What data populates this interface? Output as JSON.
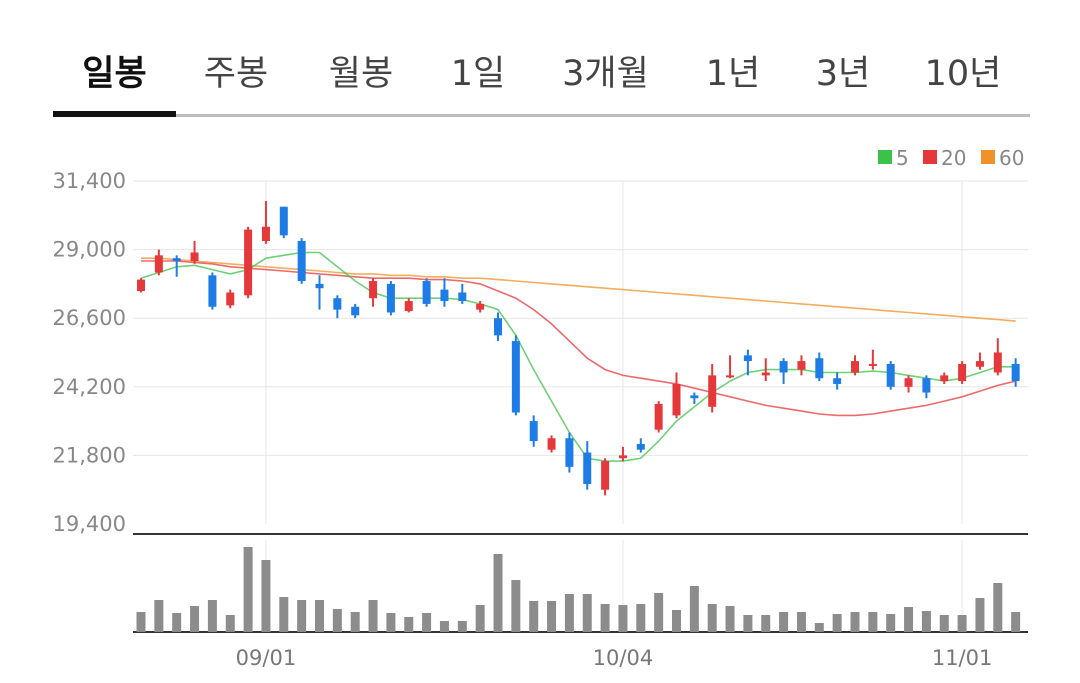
{
  "tabs": [
    {
      "label": "일봉",
      "active": true
    },
    {
      "label": "주봉",
      "active": false
    },
    {
      "label": "월봉",
      "active": false
    },
    {
      "label": "1일",
      "active": false
    },
    {
      "label": "3개월",
      "active": false
    },
    {
      "label": "1년",
      "active": false
    },
    {
      "label": "3년",
      "active": false
    },
    {
      "label": "10년",
      "active": false
    }
  ],
  "colors": {
    "up": "#e5383b",
    "down": "#1e7ce6",
    "ma5": "#3cc24a",
    "ma20": "#e5383b",
    "ma60": "#f0922a",
    "volume": "#8c8c8c",
    "grid": "#e6e6e6"
  },
  "chart_data": {
    "type": "candlestick",
    "y_ticks": [
      "31,400",
      "29,000",
      "26,600",
      "24,200",
      "21,800",
      "19,400"
    ],
    "ylim": [
      19400,
      31400
    ],
    "x_labels": [
      {
        "label": "09/01",
        "index": 7
      },
      {
        "label": "10/04",
        "index": 27
      },
      {
        "label": "11/01",
        "index": 46
      }
    ],
    "legend": [
      {
        "name": "5",
        "color": "#3cc24a"
      },
      {
        "name": "20",
        "color": "#e5383b"
      },
      {
        "name": "60",
        "color": "#f0922a"
      }
    ],
    "candles": [
      [
        27550,
        27950,
        27500,
        28000
      ],
      [
        28200,
        28800,
        28100,
        29000
      ],
      [
        28700,
        28600,
        28050,
        28800
      ],
      [
        28600,
        28900,
        28500,
        29300
      ],
      [
        28100,
        27000,
        26900,
        28200
      ],
      [
        27050,
        27500,
        26950,
        27600
      ],
      [
        27400,
        29700,
        27300,
        29800
      ],
      [
        29300,
        29800,
        29200,
        30700
      ],
      [
        30500,
        29500,
        29400,
        30500
      ],
      [
        29300,
        27900,
        27800,
        29400
      ],
      [
        27800,
        27650,
        26900,
        28100
      ],
      [
        27300,
        26900,
        26600,
        27400
      ],
      [
        27000,
        26700,
        26600,
        27100
      ],
      [
        27300,
        27900,
        27000,
        28000
      ],
      [
        27800,
        26800,
        26700,
        27900
      ],
      [
        26850,
        27200,
        26800,
        27300
      ],
      [
        27900,
        27100,
        27000,
        28000
      ],
      [
        27600,
        27200,
        27000,
        28000
      ],
      [
        27500,
        27200,
        27100,
        27800
      ],
      [
        26900,
        27100,
        26800,
        27200
      ],
      [
        26600,
        26000,
        25800,
        26800
      ],
      [
        25800,
        23300,
        23200,
        26000
      ],
      [
        23000,
        22300,
        22100,
        23200
      ],
      [
        22000,
        22400,
        21900,
        22500
      ],
      [
        22400,
        21400,
        21200,
        22600
      ],
      [
        21900,
        20800,
        20600,
        22300
      ],
      [
        20600,
        21600,
        20400,
        21700
      ],
      [
        21700,
        21800,
        21600,
        22100
      ],
      [
        22200,
        22000,
        21900,
        22400
      ],
      [
        22700,
        23600,
        22600,
        23700
      ],
      [
        23200,
        24300,
        23100,
        24700
      ],
      [
        23900,
        23800,
        23600,
        24000
      ],
      [
        23500,
        24600,
        23300,
        25000
      ],
      [
        24600,
        24600,
        24500,
        25300
      ],
      [
        25300,
        25100,
        24600,
        25500
      ],
      [
        24600,
        24700,
        24400,
        25200
      ],
      [
        25100,
        24700,
        24300,
        25200
      ],
      [
        24800,
        25100,
        24600,
        25300
      ],
      [
        25200,
        24500,
        24400,
        25400
      ],
      [
        24500,
        24300,
        24100,
        24700
      ],
      [
        24700,
        25100,
        24600,
        25300
      ],
      [
        25000,
        25000,
        24800,
        25500
      ],
      [
        25000,
        24200,
        24100,
        25100
      ],
      [
        24200,
        24500,
        24000,
        24600
      ],
      [
        24500,
        24000,
        23800,
        24600
      ],
      [
        24400,
        24600,
        24300,
        24700
      ],
      [
        24400,
        25000,
        24300,
        25100
      ],
      [
        24900,
        25100,
        24800,
        25400
      ],
      [
        24700,
        25400,
        24600,
        25900
      ],
      [
        25000,
        24400,
        24200,
        25200
      ]
    ],
    "ma5": [
      28000,
      28200,
      28400,
      28450,
      28300,
      28150,
      28300,
      28700,
      28800,
      28900,
      28900,
      28400,
      27900,
      27500,
      27300,
      27300,
      27300,
      27300,
      27250,
      27100,
      26900,
      26000,
      24800,
      23700,
      22600,
      21700,
      21600,
      21600,
      21700,
      22300,
      23000,
      23500,
      24000,
      24400,
      24700,
      24800,
      24800,
      24800,
      24700,
      24700,
      24700,
      24750,
      24700,
      24600,
      24500,
      24400,
      24500,
      24700,
      24900,
      24900
    ],
    "ma20": [
      28600,
      28600,
      28600,
      28550,
      28500,
      28400,
      28350,
      28300,
      28250,
      28200,
      28150,
      28100,
      28050,
      28000,
      28000,
      28000,
      27950,
      27950,
      27900,
      27800,
      27550,
      27300,
      26900,
      26400,
      25800,
      25200,
      24800,
      24600,
      24500,
      24400,
      24300,
      24150,
      24000,
      23850,
      23700,
      23550,
      23450,
      23350,
      23250,
      23200,
      23200,
      23250,
      23350,
      23450,
      23550,
      23700,
      23850,
      24050,
      24250,
      24400
    ],
    "ma60": [
      28700,
      28700,
      28650,
      28600,
      28550,
      28500,
      28450,
      28400,
      28350,
      28300,
      28250,
      28200,
      28150,
      28150,
      28100,
      28100,
      28050,
      28050,
      28000,
      28000,
      27950,
      27900,
      27850,
      27800,
      27750,
      27700,
      27650,
      27600,
      27550,
      27500,
      27450,
      27400,
      27350,
      27300,
      27250,
      27200,
      27150,
      27100,
      27050,
      27000,
      26950,
      26900,
      26850,
      26800,
      26750,
      26700,
      26650,
      26600,
      26550,
      26500
    ],
    "volume": [
      20,
      32,
      19,
      26,
      32,
      17,
      85,
      72,
      35,
      32,
      32,
      23,
      20,
      32,
      19,
      15,
      19,
      11,
      11,
      27,
      78,
      52,
      31,
      31,
      38,
      38,
      28,
      27,
      28,
      39,
      22,
      46,
      28,
      26,
      17,
      17,
      20,
      20,
      9,
      18,
      20,
      20,
      18,
      25,
      21,
      17,
      17,
      34,
      49,
      20
    ]
  }
}
